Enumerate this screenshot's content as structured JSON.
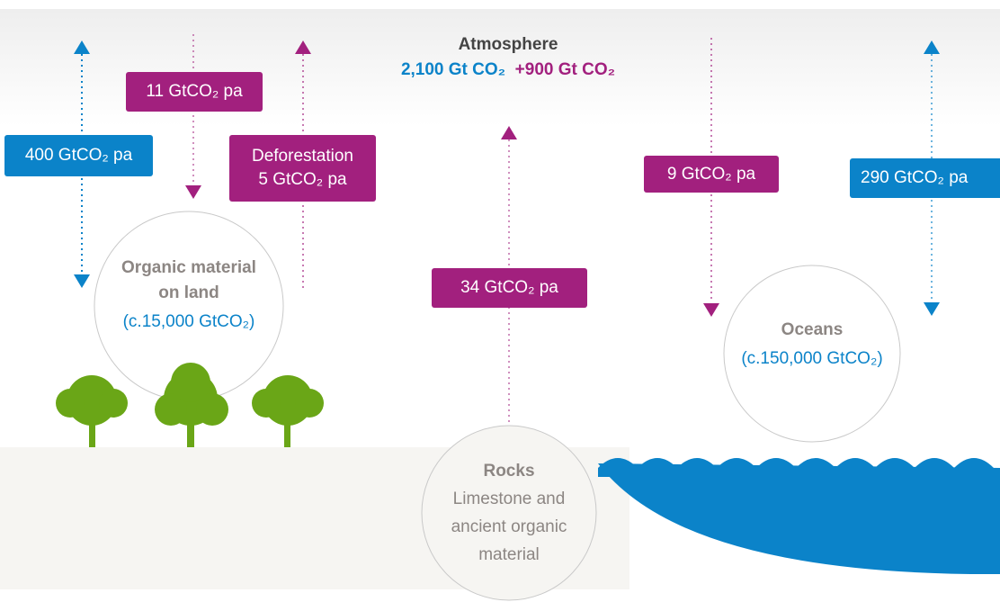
{
  "atmosphere": {
    "title": "Atmosphere",
    "stock": "2,100 Gt CO₂",
    "added": "+900 Gt CO₂"
  },
  "flows": [
    {
      "label": "11 GtCO₂ pa"
    },
    {
      "label": "400 GtCO₂ pa"
    },
    {
      "title": "Deforestation",
      "label": "5 GtCO₂ pa"
    },
    {
      "label": "34 GtCO₂ pa"
    },
    {
      "label": "9 GtCO₂ pa"
    },
    {
      "label": "290 GtCO₂ pa"
    }
  ],
  "reservoirs": [
    {
      "title": "Organic material on land",
      "amount": "(c.15,000 GtCO₂)"
    },
    {
      "title": "Oceans",
      "amount": "(c.150,000 GtCO₂)"
    },
    {
      "title": "Rocks",
      "amount": "Limestone and ancient organic material"
    }
  ]
}
